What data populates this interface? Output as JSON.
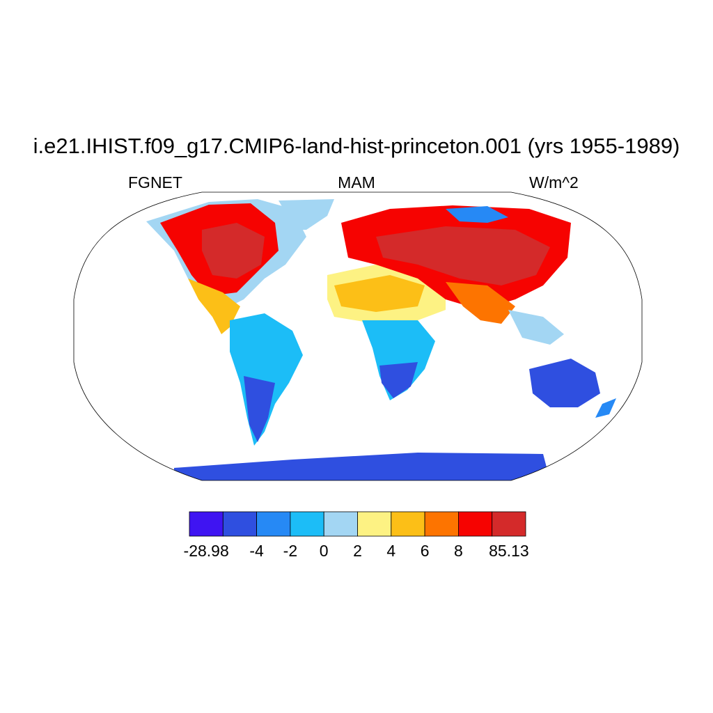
{
  "title": "i.e21.IHIST.f09_g17.CMIP6-land-hist-princeton.001 (yrs 1955-1989)",
  "subtitle_left": "FGNET",
  "subtitle_center": "MAM",
  "subtitle_right": "W/m^2",
  "colorbar": {
    "colors": [
      "#3f14f2",
      "#2f4fe0",
      "#2689f5",
      "#1cbdf7",
      "#a3d6f3",
      "#fdf283",
      "#fcbf17",
      "#fd7400",
      "#f60301",
      "#d42a2a"
    ],
    "labels": [
      "-28.98",
      "-4",
      "-2",
      "0",
      "2",
      "4",
      "6",
      "8",
      "85.13"
    ]
  },
  "map": {
    "projection": "robinson",
    "ocean_color": "#ffffff",
    "coastline_color": "#000000"
  }
}
